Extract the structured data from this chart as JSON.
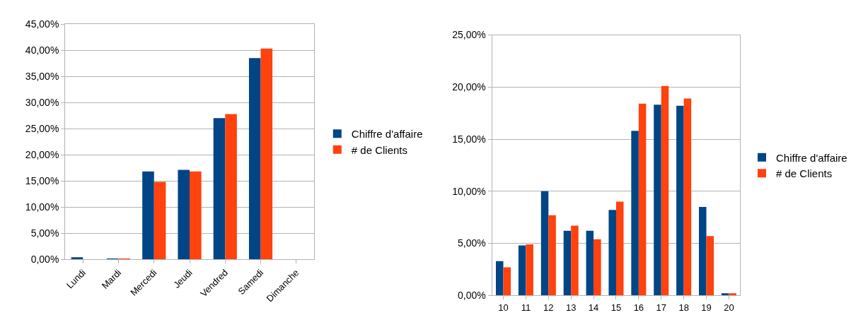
{
  "chart_data": [
    {
      "type": "bar",
      "categories": [
        "Lundi",
        "Mardi",
        "Mercedi",
        "Jeudi",
        "Vendred",
        "Samedi",
        "Dimanche"
      ],
      "series": [
        {
          "name": "Chiffre d'affaire",
          "color": "#004586",
          "values": [
            0.4,
            0.1,
            16.8,
            17.1,
            27.0,
            38.5,
            0
          ]
        },
        {
          "name": "# de Clients",
          "color": "#ff420e",
          "values": [
            0,
            0.1,
            14.8,
            16.8,
            27.8,
            40.3,
            0
          ]
        }
      ],
      "ylim": [
        0,
        45
      ],
      "yticks": [
        {
          "value": 0,
          "label": "0,00%"
        },
        {
          "value": 5,
          "label": "5,00%"
        },
        {
          "value": 10,
          "label": "10,00%"
        },
        {
          "value": 15,
          "label": "15,00%"
        },
        {
          "value": 20,
          "label": "20,00%"
        },
        {
          "value": 25,
          "label": "25,00%"
        },
        {
          "value": 30,
          "label": "30,00%"
        },
        {
          "value": 35,
          "label": "35,00%"
        },
        {
          "value": 40,
          "label": "40,00%"
        },
        {
          "value": 45,
          "label": "45,00%"
        }
      ],
      "grid": "y",
      "legend": "right"
    },
    {
      "type": "bar",
      "categories": [
        "10",
        "11",
        "12",
        "13",
        "14",
        "15",
        "16",
        "17",
        "18",
        "19",
        "20"
      ],
      "series": [
        {
          "name": "Chiffre d'affaire",
          "color": "#004586",
          "values": [
            3.3,
            4.8,
            10.0,
            6.2,
            6.2,
            8.2,
            15.8,
            18.3,
            18.2,
            8.5,
            0.2
          ]
        },
        {
          "name": "# de Clients",
          "color": "#ff420e",
          "values": [
            2.7,
            4.9,
            7.7,
            6.7,
            5.4,
            9.0,
            18.4,
            20.1,
            18.9,
            5.7,
            0.2
          ]
        }
      ],
      "ylim": [
        0,
        25
      ],
      "yticks": [
        {
          "value": 0,
          "label": "0,00%"
        },
        {
          "value": 5,
          "label": "5,00%"
        },
        {
          "value": 10,
          "label": "10,00%"
        },
        {
          "value": 15,
          "label": "15,00%"
        },
        {
          "value": 20,
          "label": "20,00%"
        },
        {
          "value": 25,
          "label": "25,00%"
        }
      ],
      "grid": "y",
      "legend": "right"
    }
  ]
}
